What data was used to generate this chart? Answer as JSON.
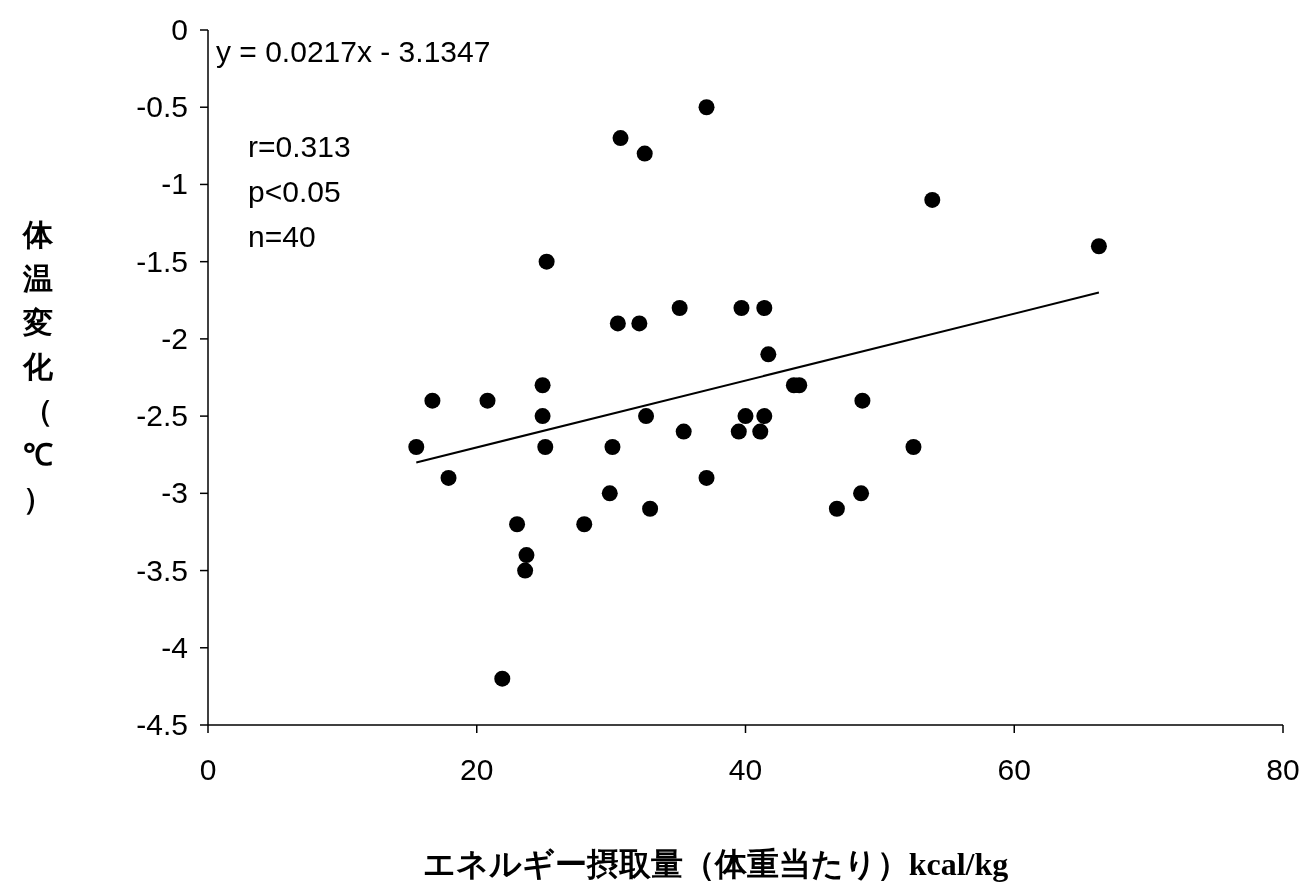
{
  "chart_data": {
    "type": "scatter",
    "xlabel": "エネルギー摂取量（体重当たり）kcal/kg",
    "ylabel": "体温変化（℃）",
    "annotations": [
      "y = 0.0217x - 3.1347",
      "r=0.313",
      "p<0.05",
      "n=40"
    ],
    "xlim": [
      0,
      80
    ],
    "ylim": [
      -4.5,
      0
    ],
    "xticks": [
      0,
      20,
      40,
      60,
      80
    ],
    "yticks": [
      0,
      -0.5,
      -1,
      -1.5,
      -2,
      -2.5,
      -3,
      -3.5,
      -4,
      -4.5
    ],
    "series": [
      {
        "type": "scatter",
        "color": "#000000",
        "marker": "circle",
        "x": [
          37.1,
          30.7,
          32.5,
          25.2,
          35.1,
          39.7,
          41.4,
          30.5,
          32.1,
          41.7,
          24.9,
          43.6,
          44.0,
          16.7,
          20.8,
          24.9,
          32.6,
          40.0,
          41.4,
          35.4,
          39.5,
          41.1,
          15.5,
          25.1,
          30.1,
          17.9,
          37.1,
          29.9,
          32.9,
          23.0,
          28.0,
          23.7,
          23.6,
          21.9,
          53.9,
          66.3,
          48.7,
          52.5,
          48.6,
          46.8
        ],
        "values": [
          -0.5,
          -0.7,
          -0.8,
          -1.5,
          -1.8,
          -1.8,
          -1.8,
          -1.9,
          -1.9,
          -2.1,
          -2.3,
          -2.3,
          -2.3,
          -2.4,
          -2.4,
          -2.5,
          -2.5,
          -2.5,
          -2.5,
          -2.6,
          -2.6,
          -2.6,
          -2.7,
          -2.7,
          -2.7,
          -2.9,
          -2.9,
          -3.0,
          -3.1,
          -3.2,
          -3.2,
          -3.4,
          -3.5,
          -4.2,
          -1.1,
          -1.4,
          -2.4,
          -2.7,
          -3.0,
          -3.1
        ]
      },
      {
        "type": "line",
        "color": "#000000",
        "x": [
          15.5,
          66.3
        ],
        "values": [
          -2.8,
          -1.7
        ]
      }
    ]
  }
}
